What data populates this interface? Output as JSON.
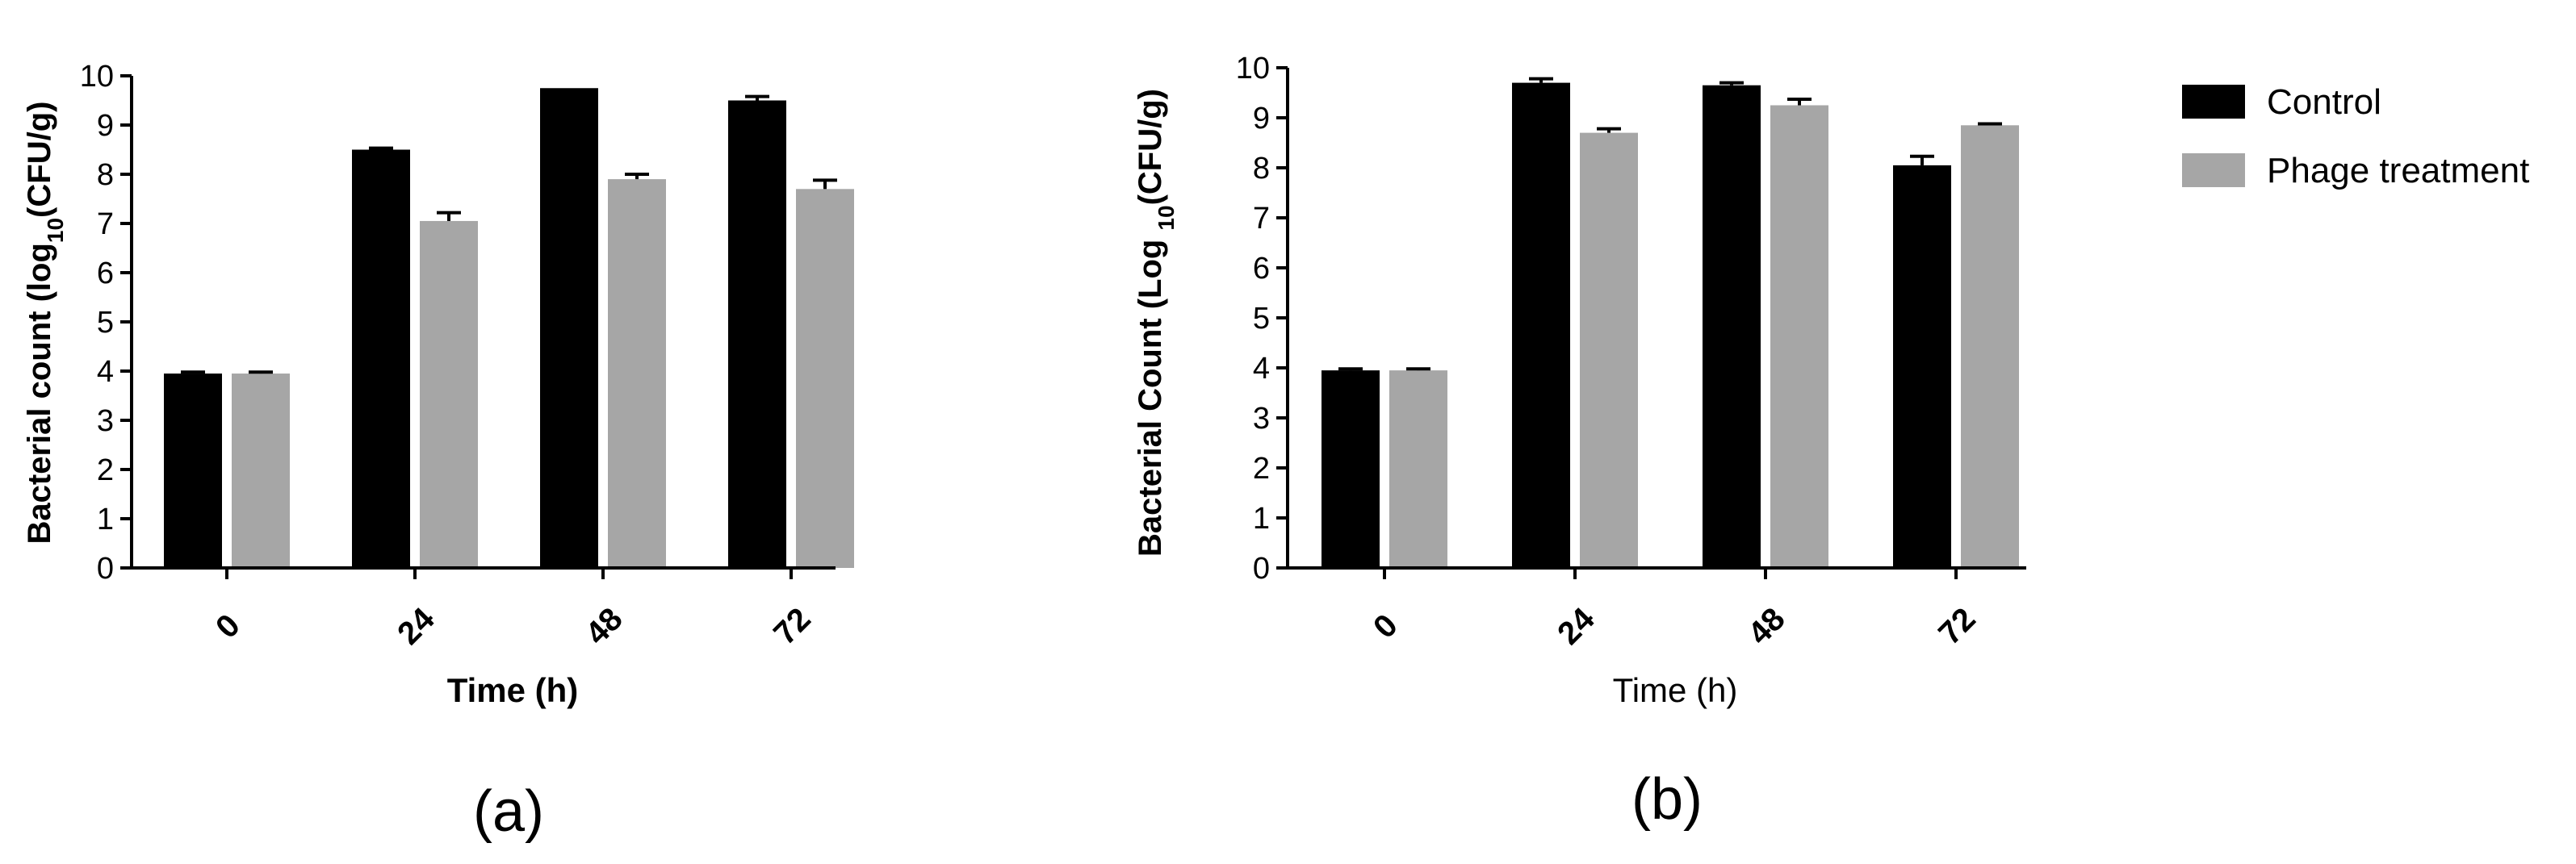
{
  "colors": {
    "control": "#000000",
    "phage": "#a6a6a6",
    "axis": "#000000"
  },
  "legend": [
    {
      "name": "Control",
      "color": "#000000"
    },
    {
      "name": "Phage treatment",
      "color": "#a6a6a6"
    }
  ],
  "chart_data": [
    {
      "type": "bar",
      "panel": "(a)",
      "categories": [
        "0",
        "24",
        "48",
        "72"
      ],
      "xlabel": "Time (h)",
      "ylabel_parts": [
        "Bacterial count (log",
        "10",
        "(CFU/g)"
      ],
      "ylim": [
        0,
        10
      ],
      "yticks": [
        0,
        1,
        2,
        3,
        4,
        5,
        6,
        7,
        8,
        9,
        10
      ],
      "series": [
        {
          "name": "Control",
          "values": [
            3.95,
            8.5,
            9.75,
            9.5
          ],
          "errors": [
            0.03,
            0.03,
            0.0,
            0.08
          ]
        },
        {
          "name": "Phage treatment",
          "values": [
            3.95,
            7.05,
            7.9,
            7.7
          ],
          "errors": [
            0.03,
            0.17,
            0.1,
            0.18
          ]
        }
      ],
      "legend_position": "none"
    },
    {
      "type": "bar",
      "panel": "(b)",
      "categories": [
        "0",
        "24",
        "48",
        "72"
      ],
      "xlabel": "Time (h)",
      "ylabel_parts": [
        "Bacterial Count (Log ",
        "10",
        "(CFU/g)"
      ],
      "ylim": [
        0,
        10
      ],
      "yticks": [
        0,
        1,
        2,
        3,
        4,
        5,
        6,
        7,
        8,
        9,
        10
      ],
      "series": [
        {
          "name": "Control",
          "values": [
            3.95,
            9.7,
            9.65,
            8.05
          ],
          "errors": [
            0.03,
            0.08,
            0.05,
            0.18
          ]
        },
        {
          "name": "Phage treatment",
          "values": [
            3.95,
            8.7,
            9.25,
            8.85
          ],
          "errors": [
            0.03,
            0.08,
            0.12,
            0.03
          ]
        }
      ],
      "legend_position": "right"
    }
  ]
}
